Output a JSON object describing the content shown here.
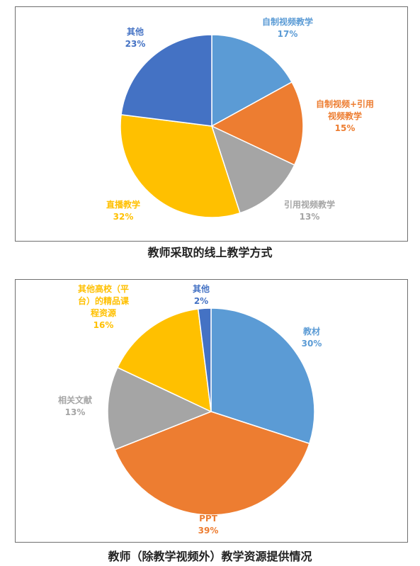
{
  "chart_data": [
    {
      "type": "pie",
      "title": "教师采取的线上教学方式",
      "slices": [
        {
          "label_lines": [
            "自制视频教学"
          ],
          "pct_text": "17%",
          "value": 17,
          "color": "#5b9bd5"
        },
        {
          "label_lines": [
            "自制视频+引用",
            "视频教学"
          ],
          "pct_text": "15%",
          "value": 15,
          "color": "#ed7d31"
        },
        {
          "label_lines": [
            "引用视频教学"
          ],
          "pct_text": "13%",
          "value": 13,
          "color": "#a5a5a5"
        },
        {
          "label_lines": [
            "直播教学"
          ],
          "pct_text": "32%",
          "value": 32,
          "color": "#ffc000"
        },
        {
          "label_lines": [
            "其他"
          ],
          "pct_text": "23%",
          "value": 23,
          "color": "#4472c4"
        }
      ]
    },
    {
      "type": "pie",
      "title": "教师（除教学视频外）教学资源提供情况",
      "slices": [
        {
          "label_lines": [
            "教材"
          ],
          "pct_text": "30%",
          "value": 30,
          "color": "#5b9bd5"
        },
        {
          "label_lines": [
            "PPT"
          ],
          "pct_text": "39%",
          "value": 39,
          "color": "#ed7d31"
        },
        {
          "label_lines": [
            "相关文献"
          ],
          "pct_text": "13%",
          "value": 13,
          "color": "#a5a5a5"
        },
        {
          "label_lines": [
            "其他高校（平",
            "台）的精品课",
            "程资源"
          ],
          "pct_text": "16%",
          "value": 16,
          "color": "#ffc000"
        },
        {
          "label_lines": [
            "其他"
          ],
          "pct_text": "2%",
          "value": 2,
          "color": "#4472c4"
        }
      ]
    }
  ]
}
